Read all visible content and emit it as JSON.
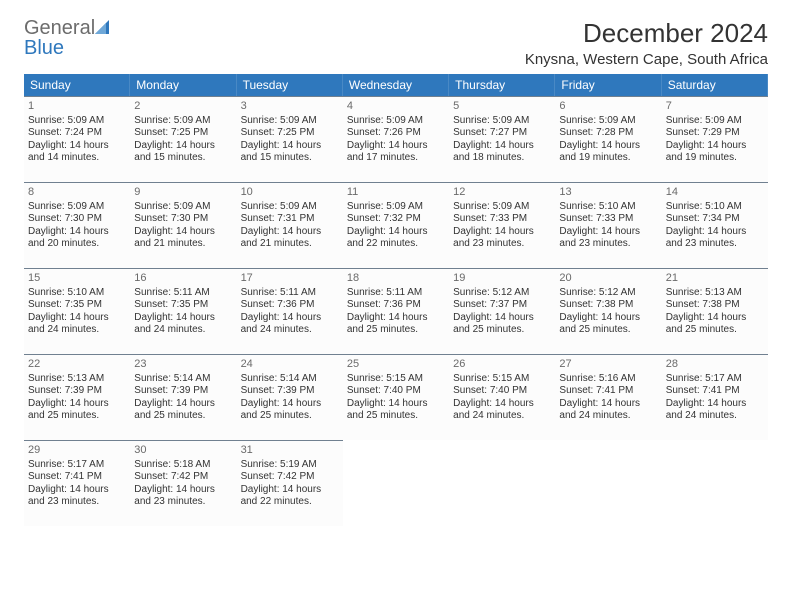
{
  "brand": {
    "line1": "General",
    "line2": "Blue"
  },
  "header": {
    "title": "December 2024",
    "location": "Knysna, Western Cape, South Africa"
  },
  "colors": {
    "header_bg": "#2f78bd",
    "header_text": "#ffffff",
    "cell_bg": "#fcfcfc",
    "cell_border": "#708090",
    "text": "#333333",
    "logo_gray": "#6c6c6c",
    "logo_blue": "#2f78bd",
    "page_bg": "#ffffff"
  },
  "typography": {
    "title_fontsize": 26,
    "location_fontsize": 15,
    "dayheader_fontsize": 12,
    "cell_fontsize": 10
  },
  "calendar": {
    "type": "table",
    "columns": [
      "Sunday",
      "Monday",
      "Tuesday",
      "Wednesday",
      "Thursday",
      "Friday",
      "Saturday"
    ],
    "first_weekday_index": 0,
    "days": [
      {
        "n": 1,
        "sunrise": "5:09 AM",
        "sunset": "7:24 PM",
        "daylight": "14 hours and 14 minutes."
      },
      {
        "n": 2,
        "sunrise": "5:09 AM",
        "sunset": "7:25 PM",
        "daylight": "14 hours and 15 minutes."
      },
      {
        "n": 3,
        "sunrise": "5:09 AM",
        "sunset": "7:25 PM",
        "daylight": "14 hours and 15 minutes."
      },
      {
        "n": 4,
        "sunrise": "5:09 AM",
        "sunset": "7:26 PM",
        "daylight": "14 hours and 17 minutes."
      },
      {
        "n": 5,
        "sunrise": "5:09 AM",
        "sunset": "7:27 PM",
        "daylight": "14 hours and 18 minutes."
      },
      {
        "n": 6,
        "sunrise": "5:09 AM",
        "sunset": "7:28 PM",
        "daylight": "14 hours and 19 minutes."
      },
      {
        "n": 7,
        "sunrise": "5:09 AM",
        "sunset": "7:29 PM",
        "daylight": "14 hours and 19 minutes."
      },
      {
        "n": 8,
        "sunrise": "5:09 AM",
        "sunset": "7:30 PM",
        "daylight": "14 hours and 20 minutes."
      },
      {
        "n": 9,
        "sunrise": "5:09 AM",
        "sunset": "7:30 PM",
        "daylight": "14 hours and 21 minutes."
      },
      {
        "n": 10,
        "sunrise": "5:09 AM",
        "sunset": "7:31 PM",
        "daylight": "14 hours and 21 minutes."
      },
      {
        "n": 11,
        "sunrise": "5:09 AM",
        "sunset": "7:32 PM",
        "daylight": "14 hours and 22 minutes."
      },
      {
        "n": 12,
        "sunrise": "5:09 AM",
        "sunset": "7:33 PM",
        "daylight": "14 hours and 23 minutes."
      },
      {
        "n": 13,
        "sunrise": "5:10 AM",
        "sunset": "7:33 PM",
        "daylight": "14 hours and 23 minutes."
      },
      {
        "n": 14,
        "sunrise": "5:10 AM",
        "sunset": "7:34 PM",
        "daylight": "14 hours and 23 minutes."
      },
      {
        "n": 15,
        "sunrise": "5:10 AM",
        "sunset": "7:35 PM",
        "daylight": "14 hours and 24 minutes."
      },
      {
        "n": 16,
        "sunrise": "5:11 AM",
        "sunset": "7:35 PM",
        "daylight": "14 hours and 24 minutes."
      },
      {
        "n": 17,
        "sunrise": "5:11 AM",
        "sunset": "7:36 PM",
        "daylight": "14 hours and 24 minutes."
      },
      {
        "n": 18,
        "sunrise": "5:11 AM",
        "sunset": "7:36 PM",
        "daylight": "14 hours and 25 minutes."
      },
      {
        "n": 19,
        "sunrise": "5:12 AM",
        "sunset": "7:37 PM",
        "daylight": "14 hours and 25 minutes."
      },
      {
        "n": 20,
        "sunrise": "5:12 AM",
        "sunset": "7:38 PM",
        "daylight": "14 hours and 25 minutes."
      },
      {
        "n": 21,
        "sunrise": "5:13 AM",
        "sunset": "7:38 PM",
        "daylight": "14 hours and 25 minutes."
      },
      {
        "n": 22,
        "sunrise": "5:13 AM",
        "sunset": "7:39 PM",
        "daylight": "14 hours and 25 minutes."
      },
      {
        "n": 23,
        "sunrise": "5:14 AM",
        "sunset": "7:39 PM",
        "daylight": "14 hours and 25 minutes."
      },
      {
        "n": 24,
        "sunrise": "5:14 AM",
        "sunset": "7:39 PM",
        "daylight": "14 hours and 25 minutes."
      },
      {
        "n": 25,
        "sunrise": "5:15 AM",
        "sunset": "7:40 PM",
        "daylight": "14 hours and 25 minutes."
      },
      {
        "n": 26,
        "sunrise": "5:15 AM",
        "sunset": "7:40 PM",
        "daylight": "14 hours and 24 minutes."
      },
      {
        "n": 27,
        "sunrise": "5:16 AM",
        "sunset": "7:41 PM",
        "daylight": "14 hours and 24 minutes."
      },
      {
        "n": 28,
        "sunrise": "5:17 AM",
        "sunset": "7:41 PM",
        "daylight": "14 hours and 24 minutes."
      },
      {
        "n": 29,
        "sunrise": "5:17 AM",
        "sunset": "7:41 PM",
        "daylight": "14 hours and 23 minutes."
      },
      {
        "n": 30,
        "sunrise": "5:18 AM",
        "sunset": "7:42 PM",
        "daylight": "14 hours and 23 minutes."
      },
      {
        "n": 31,
        "sunrise": "5:19 AM",
        "sunset": "7:42 PM",
        "daylight": "14 hours and 22 minutes."
      }
    ],
    "labels": {
      "sunrise": "Sunrise:",
      "sunset": "Sunset:",
      "daylight": "Daylight:"
    }
  }
}
